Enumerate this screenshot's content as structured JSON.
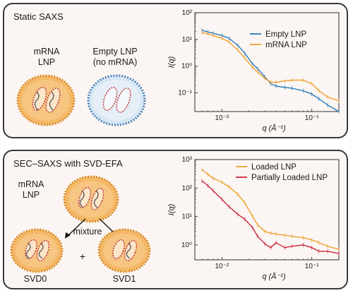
{
  "panel_top": {
    "title": "Static SAXS",
    "label_mrna_lnp": "mRNA\nLNP",
    "label_empty_lnp": "Empty LNP\n(no mRNA)",
    "colors": {
      "empty": "#2a7ab8",
      "mrna": "#f0a030"
    }
  },
  "panel_bottom": {
    "title": "SEC–SAXS with SVD-EFA",
    "label_mrna_lnp": "mRNA\nLNP",
    "label_mixture": "mixture",
    "label_plus": "+",
    "label_svd0": "SVD0",
    "label_svd1": "SVD1",
    "colors": {
      "loaded": "#f0a030",
      "partial": "#c8283c"
    }
  },
  "chart_data": [
    {
      "type": "line",
      "xlabel": "q (Å⁻¹)",
      "ylabel": "I(q)",
      "xscale": "log",
      "yscale": "log",
      "xlim": [
        0.005,
        0.2
      ],
      "ylim": [
        0.02,
        100
      ],
      "xticks": [
        "10⁻²",
        "10⁻¹"
      ],
      "yticks": [
        "10⁻¹",
        "10⁰",
        "10¹",
        "10²"
      ],
      "legend": "top-right",
      "series": [
        {
          "name": "Empty LNP",
          "color": "#2a7ab8",
          "x": [
            0.006,
            0.007,
            0.008,
            0.01,
            0.012,
            0.015,
            0.018,
            0.022,
            0.025,
            0.03,
            0.035,
            0.04,
            0.05,
            0.06,
            0.08,
            0.1,
            0.12,
            0.15,
            0.2
          ],
          "y": [
            22,
            19,
            17,
            14,
            11,
            6,
            3,
            1.2,
            0.8,
            0.4,
            0.22,
            0.18,
            0.16,
            0.15,
            0.12,
            0.09,
            0.06,
            0.035,
            0.02
          ]
        },
        {
          "name": "mRNA LNP",
          "color": "#f0a030",
          "x": [
            0.006,
            0.007,
            0.008,
            0.01,
            0.012,
            0.015,
            0.018,
            0.022,
            0.025,
            0.03,
            0.035,
            0.04,
            0.05,
            0.06,
            0.08,
            0.1,
            0.12,
            0.15,
            0.2
          ],
          "y": [
            18,
            16,
            14,
            11,
            8,
            4,
            2,
            0.9,
            0.6,
            0.35,
            0.25,
            0.25,
            0.28,
            0.3,
            0.3,
            0.22,
            0.12,
            0.07,
            0.05
          ]
        }
      ]
    },
    {
      "type": "line",
      "xlabel": "q (Å⁻¹)",
      "ylabel": "I(q)",
      "xscale": "log",
      "yscale": "log",
      "xlim": [
        0.005,
        0.2
      ],
      "ylim": [
        0.3,
        1000
      ],
      "xticks": [
        "10⁻²",
        "10⁻¹"
      ],
      "yticks": [
        "10⁰",
        "10¹",
        "10²",
        "10³"
      ],
      "legend": "top-right",
      "series": [
        {
          "name": "Loaded LNP",
          "color": "#f0a030",
          "x": [
            0.006,
            0.007,
            0.008,
            0.01,
            0.012,
            0.015,
            0.018,
            0.022,
            0.025,
            0.03,
            0.035,
            0.04,
            0.05,
            0.06,
            0.08,
            0.1,
            0.12,
            0.15,
            0.2
          ],
          "y": [
            450,
            300,
            220,
            160,
            110,
            60,
            30,
            10,
            5,
            3,
            2.6,
            2.4,
            2.2,
            2.0,
            1.8,
            1.5,
            1.2,
            0.9,
            0.7
          ]
        },
        {
          "name": "Partially Loaded LNP",
          "color": "#c8283c",
          "x": [
            0.006,
            0.007,
            0.008,
            0.01,
            0.012,
            0.015,
            0.018,
            0.022,
            0.025,
            0.03,
            0.035,
            0.04,
            0.05,
            0.06,
            0.08,
            0.1,
            0.12,
            0.15,
            0.2
          ],
          "y": [
            180,
            120,
            80,
            40,
            22,
            12,
            8,
            4,
            2,
            1.1,
            0.8,
            1.2,
            0.8,
            0.9,
            1.0,
            0.8,
            0.6,
            0.6,
            0.5
          ]
        }
      ]
    }
  ]
}
